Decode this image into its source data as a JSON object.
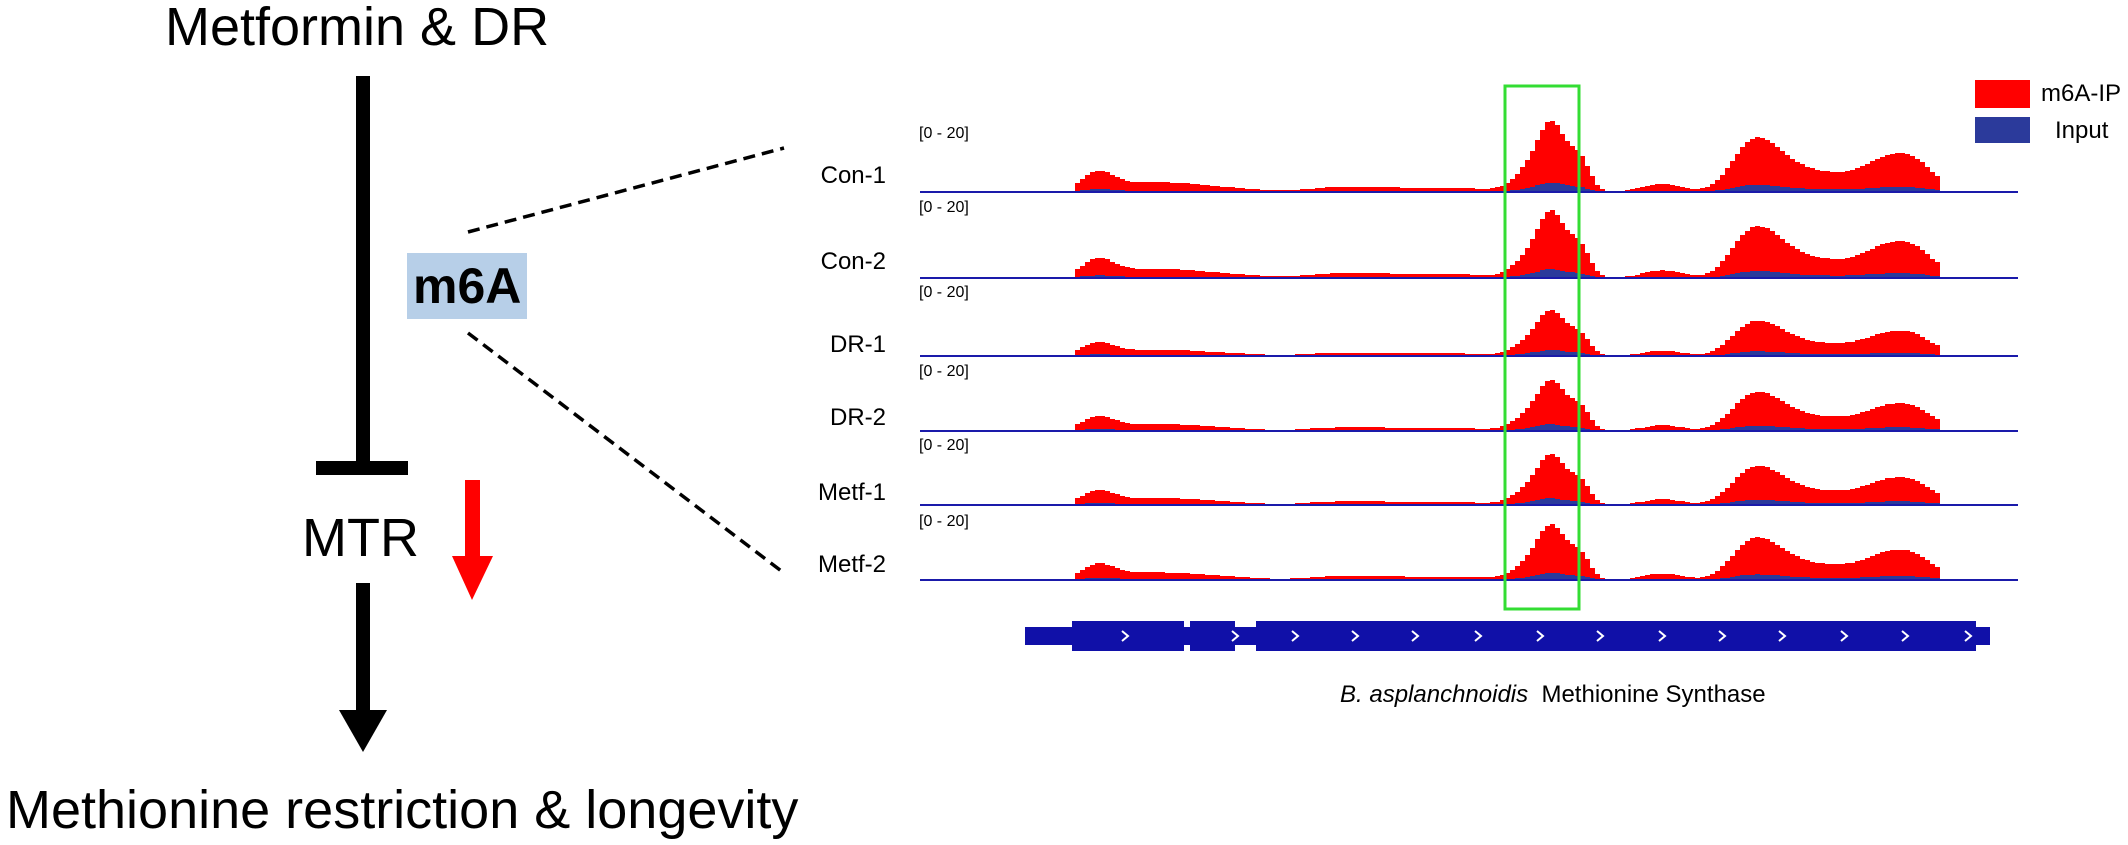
{
  "pathway": {
    "top": "Metformin & DR",
    "mediator": "m6A",
    "target": "MTR",
    "outcome": "Methionine restriction & longevity"
  },
  "legend": [
    {
      "label": "m6A-IP",
      "color": "#ff0000"
    },
    {
      "label": "Input",
      "color": "#2b3a9b"
    }
  ],
  "tracks": [
    {
      "label": "Con-1",
      "range": "[0 - 20]"
    },
    {
      "label": "Con-2",
      "range": "[0 - 20]"
    },
    {
      "label": "DR-1",
      "range": "[0 - 20]"
    },
    {
      "label": "DR-2",
      "range": "[0 - 20]"
    },
    {
      "label": "Metf-1",
      "range": "[0 - 20]"
    },
    {
      "label": "Metf-2",
      "range": "[0 - 20]"
    }
  ],
  "gene": {
    "species": "B. asplanchnoidis",
    "name": "Methionine Synthase"
  },
  "colors": {
    "highlight_box": "#33dd33",
    "mtr_down_arrow": "#ff0000",
    "baseline": "#1a1aaa",
    "gene_model": "#1010a8",
    "m6a_background": "#b7cfe8"
  }
}
